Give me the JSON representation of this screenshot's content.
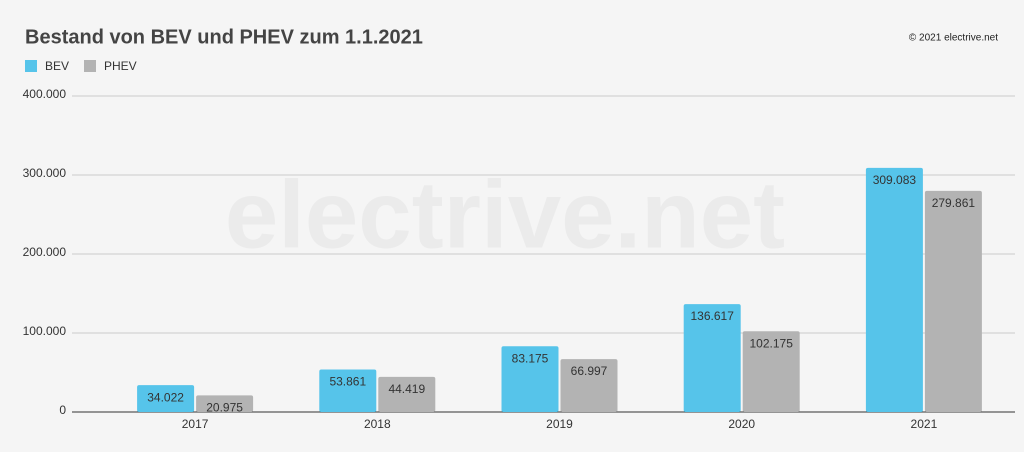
{
  "chart_data": {
    "type": "bar",
    "title": "Bestand von BEV und PHEV zum 1.1.2021",
    "source": "© 2021 electrive.net",
    "watermark": "electrive.net",
    "categories": [
      "2017",
      "2018",
      "2019",
      "2020",
      "2021"
    ],
    "series": [
      {
        "name": "BEV",
        "color": "#56c4ea",
        "values": [
          34022,
          53861,
          83175,
          136617,
          309083
        ],
        "value_labels": [
          "34.022",
          "53.861",
          "83.175",
          "136.617",
          "309.083"
        ]
      },
      {
        "name": "PHEV",
        "color": "#b3b3b3",
        "values": [
          20975,
          44419,
          66997,
          102175,
          279861
        ],
        "value_labels": [
          "20.975",
          "44.419",
          "66.997",
          "102.175",
          "279.861"
        ]
      }
    ],
    "ylim": [
      0,
      400000
    ],
    "yticks": [
      0,
      {
        "value": 100000,
        "label": "100.000"
      },
      {
        "value": 200000,
        "label": "200.000"
      },
      {
        "value": 300000,
        "label": "300.000"
      },
      {
        "value": 400000,
        "label": "400.000"
      }
    ],
    "grid": true,
    "legend": "top-left"
  }
}
